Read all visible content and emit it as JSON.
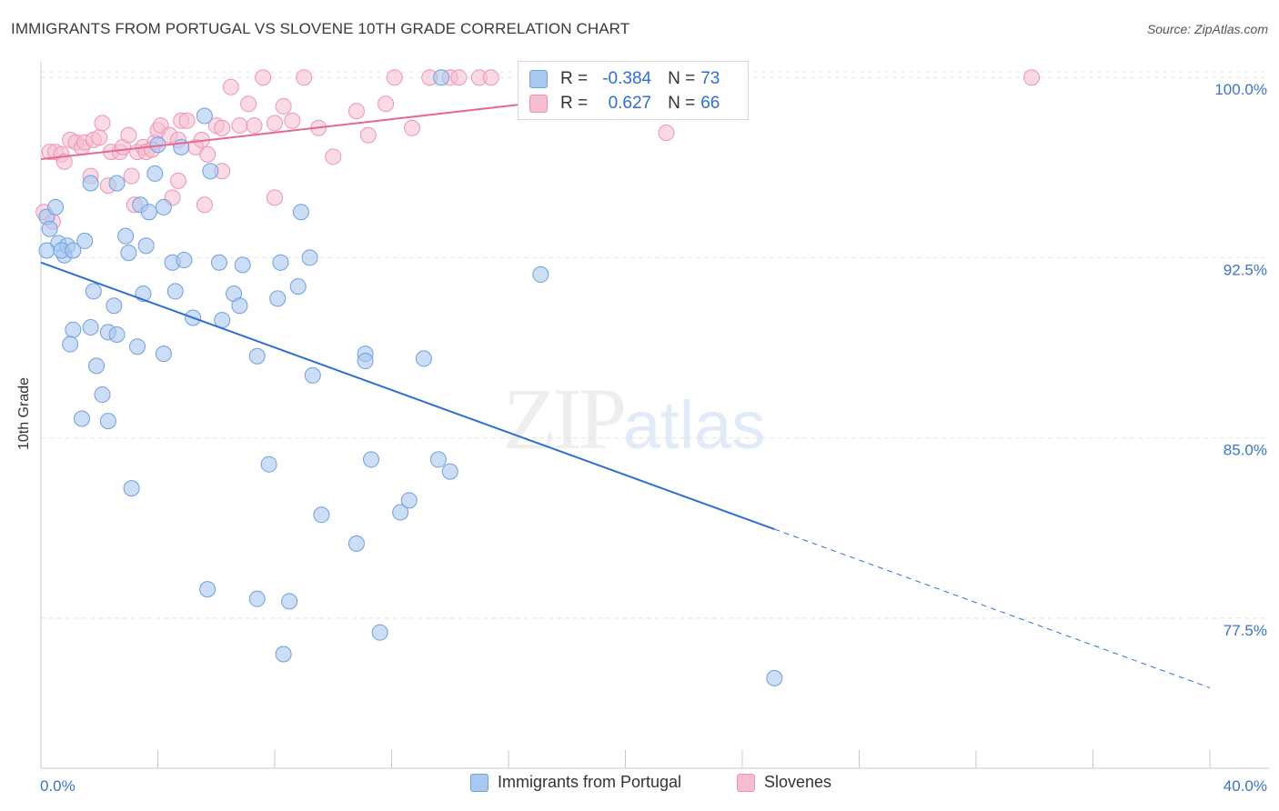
{
  "title": "IMMIGRANTS FROM PORTUGAL VS SLOVENE 10TH GRADE CORRELATION CHART",
  "source": "Source: ZipAtlas.com",
  "watermark": {
    "zip": "ZIP",
    "atlas": "atlas"
  },
  "stats": {
    "r_label": "R =",
    "n_label": "N =",
    "rows": [
      {
        "r": "-0.384",
        "n": "73"
      },
      {
        "r": "0.627",
        "n": "66"
      }
    ]
  },
  "colors": {
    "blue_fill": "#a9c8f0",
    "blue_stroke": "#6f9fe0",
    "blue_line": "#2f6fd0",
    "pink_fill": "#f6bdd0",
    "pink_stroke": "#ee94b3",
    "pink_line": "#e8668f",
    "tick_label": "#3b73c9"
  },
  "chart_data": {
    "type": "scatter",
    "title": "IMMIGRANTS FROM PORTUGAL VS SLOVENE 10TH GRADE CORRELATION CHART",
    "xlabel": "",
    "ylabel": "10th Grade",
    "xlim": [
      0,
      40
    ],
    "ylim": [
      71.25,
      100.5
    ],
    "x_tick_labels": [
      "0.0%",
      "40.0%"
    ],
    "y_ticks": [
      77.5,
      85.0,
      92.5,
      100.0
    ],
    "y_tick_labels": [
      "77.5%",
      "85.0%",
      "92.5%",
      "100.0%"
    ],
    "legend": [
      "Immigrants from Portugal",
      "Slovenes"
    ],
    "series": [
      {
        "name": "Immigrants from Portugal",
        "trend": {
          "x0": 0,
          "y0": 92.3,
          "x1": 25.1,
          "y1": 81.2,
          "dash_x1": 40,
          "dash_y1": 74.6
        },
        "points": [
          [
            0.2,
            94.2
          ],
          [
            0.5,
            94.6
          ],
          [
            0.3,
            93.7
          ],
          [
            0.6,
            93.1
          ],
          [
            0.8,
            92.6
          ],
          [
            0.9,
            93.0
          ],
          [
            0.2,
            92.8
          ],
          [
            0.7,
            92.8
          ],
          [
            1.1,
            92.8
          ],
          [
            1.5,
            93.2
          ],
          [
            1.7,
            95.6
          ],
          [
            2.6,
            95.6
          ],
          [
            3.4,
            94.7
          ],
          [
            3.7,
            94.4
          ],
          [
            3.9,
            96.0
          ],
          [
            4.2,
            94.6
          ],
          [
            4.8,
            97.1
          ],
          [
            5.6,
            98.4
          ],
          [
            5.8,
            96.1
          ],
          [
            4.0,
            97.2
          ],
          [
            2.9,
            93.4
          ],
          [
            3.0,
            92.7
          ],
          [
            3.6,
            93.0
          ],
          [
            4.5,
            92.3
          ],
          [
            4.9,
            92.4
          ],
          [
            6.1,
            92.3
          ],
          [
            6.9,
            92.2
          ],
          [
            8.2,
            92.3
          ],
          [
            9.2,
            92.5
          ],
          [
            8.9,
            94.4
          ],
          [
            1.8,
            91.1
          ],
          [
            2.5,
            90.5
          ],
          [
            3.5,
            91.0
          ],
          [
            4.6,
            91.1
          ],
          [
            5.2,
            90.0
          ],
          [
            6.2,
            89.9
          ],
          [
            6.6,
            91.0
          ],
          [
            6.8,
            90.5
          ],
          [
            8.1,
            90.8
          ],
          [
            8.8,
            91.3
          ],
          [
            1.1,
            89.5
          ],
          [
            1.0,
            88.9
          ],
          [
            1.7,
            89.6
          ],
          [
            2.3,
            89.4
          ],
          [
            2.6,
            89.3
          ],
          [
            3.3,
            88.8
          ],
          [
            4.2,
            88.5
          ],
          [
            7.4,
            88.4
          ],
          [
            9.3,
            87.6
          ],
          [
            11.1,
            88.5
          ],
          [
            11.1,
            88.2
          ],
          [
            13.1,
            88.3
          ],
          [
            17.1,
            91.8
          ],
          [
            1.9,
            88.0
          ],
          [
            2.1,
            86.8
          ],
          [
            1.4,
            85.8
          ],
          [
            2.3,
            85.7
          ],
          [
            3.1,
            82.9
          ],
          [
            7.8,
            83.9
          ],
          [
            9.6,
            81.8
          ],
          [
            11.3,
            84.1
          ],
          [
            12.3,
            81.9
          ],
          [
            12.6,
            82.4
          ],
          [
            13.6,
            84.1
          ],
          [
            14.0,
            83.6
          ],
          [
            10.8,
            80.6
          ],
          [
            5.7,
            78.7
          ],
          [
            7.4,
            78.3
          ],
          [
            8.5,
            78.2
          ],
          [
            8.3,
            76.0
          ],
          [
            11.6,
            76.9
          ],
          [
            25.1,
            75.0
          ],
          [
            13.7,
            100.0
          ]
        ]
      },
      {
        "name": "Slovenes",
        "trend": {
          "x0": 0,
          "y0": 96.6,
          "x1": 23.8,
          "y1": 99.9
        },
        "points": [
          [
            0.3,
            96.9
          ],
          [
            0.5,
            96.9
          ],
          [
            0.7,
            96.8
          ],
          [
            0.8,
            96.5
          ],
          [
            1.0,
            97.4
          ],
          [
            1.2,
            97.3
          ],
          [
            1.4,
            97.1
          ],
          [
            1.5,
            97.3
          ],
          [
            1.8,
            97.4
          ],
          [
            2.0,
            97.5
          ],
          [
            2.1,
            98.1
          ],
          [
            2.4,
            96.9
          ],
          [
            2.7,
            96.9
          ],
          [
            2.8,
            97.1
          ],
          [
            3.0,
            97.6
          ],
          [
            3.3,
            96.9
          ],
          [
            3.5,
            97.1
          ],
          [
            3.6,
            96.9
          ],
          [
            3.9,
            97.3
          ],
          [
            4.0,
            97.8
          ],
          [
            4.1,
            98.0
          ],
          [
            4.4,
            97.6
          ],
          [
            4.7,
            97.4
          ],
          [
            4.8,
            98.2
          ],
          [
            5.0,
            98.2
          ],
          [
            5.3,
            97.1
          ],
          [
            5.5,
            97.4
          ],
          [
            5.7,
            96.8
          ],
          [
            6.0,
            98.0
          ],
          [
            6.2,
            97.9
          ],
          [
            6.5,
            99.6
          ],
          [
            6.8,
            98.0
          ],
          [
            7.1,
            98.9
          ],
          [
            7.3,
            98.0
          ],
          [
            7.6,
            100.0
          ],
          [
            8.0,
            98.1
          ],
          [
            8.3,
            98.8
          ],
          [
            8.6,
            98.2
          ],
          [
            9.0,
            100.0
          ],
          [
            9.5,
            97.9
          ],
          [
            10.0,
            96.7
          ],
          [
            10.8,
            98.6
          ],
          [
            11.2,
            97.6
          ],
          [
            11.8,
            98.9
          ],
          [
            12.1,
            100.0
          ],
          [
            12.7,
            97.9
          ],
          [
            13.3,
            100.0
          ],
          [
            14.0,
            100.0
          ],
          [
            14.3,
            100.0
          ],
          [
            15.0,
            100.0
          ],
          [
            15.4,
            100.0
          ],
          [
            17.5,
            100.0
          ],
          [
            21.4,
            97.7
          ],
          [
            33.9,
            100.0
          ],
          [
            1.7,
            95.9
          ],
          [
            2.3,
            95.5
          ],
          [
            3.1,
            95.9
          ],
          [
            4.7,
            95.7
          ],
          [
            5.6,
            94.7
          ],
          [
            6.2,
            96.1
          ],
          [
            8.0,
            95.0
          ],
          [
            3.2,
            94.7
          ],
          [
            0.1,
            94.4
          ],
          [
            0.4,
            94.0
          ],
          [
            4.5,
            95.0
          ],
          [
            3.8,
            97.0
          ]
        ]
      }
    ]
  }
}
